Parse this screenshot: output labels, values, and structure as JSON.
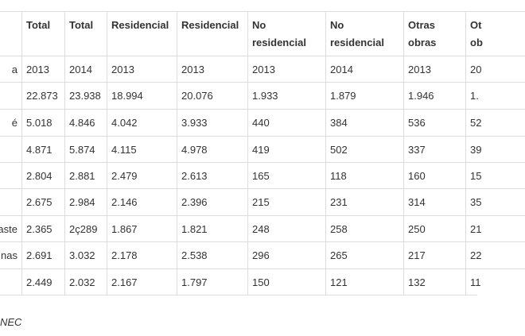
{
  "table": {
    "headers": [
      null,
      "Total",
      "Total",
      "Residencial",
      "Residencial",
      "No residencial",
      "No residencial",
      "Otras obras",
      "Ot ob"
    ],
    "rows": [
      [
        "a",
        "2013",
        "2014",
        "2013",
        "2013",
        "2013",
        "2014",
        "2013",
        "20"
      ],
      [
        null,
        "22.873",
        "23.938",
        "18.994",
        "20.076",
        "1.933",
        "1.879",
        "1.946",
        "1."
      ],
      [
        "é",
        "5.018",
        "4.846",
        "4.042",
        "3.933",
        "440",
        "384",
        "536",
        "52"
      ],
      [
        null,
        "4.871",
        "5.874",
        "4.115",
        "4.978",
        "419",
        "502",
        "337",
        "39"
      ],
      [
        null,
        "2.804",
        "2.881",
        "2.479",
        "2.613",
        "165",
        "118",
        "160",
        "15"
      ],
      [
        null,
        "2.675",
        "2.984",
        "2.146",
        "2.396",
        "215",
        "231",
        "314",
        "35"
      ],
      [
        "aste",
        "2.365",
        "2ç289",
        "1.867",
        "1.821",
        "248",
        "258",
        "250",
        "21"
      ],
      [
        "nas",
        "2.691",
        "3.032",
        "2.178",
        "2.538",
        "296",
        "265",
        "217",
        "22"
      ],
      [
        null,
        "2.449",
        "2.032",
        "2.167",
        "1.797",
        "150",
        "121",
        "132",
        "11"
      ]
    ]
  },
  "source": "NEC"
}
